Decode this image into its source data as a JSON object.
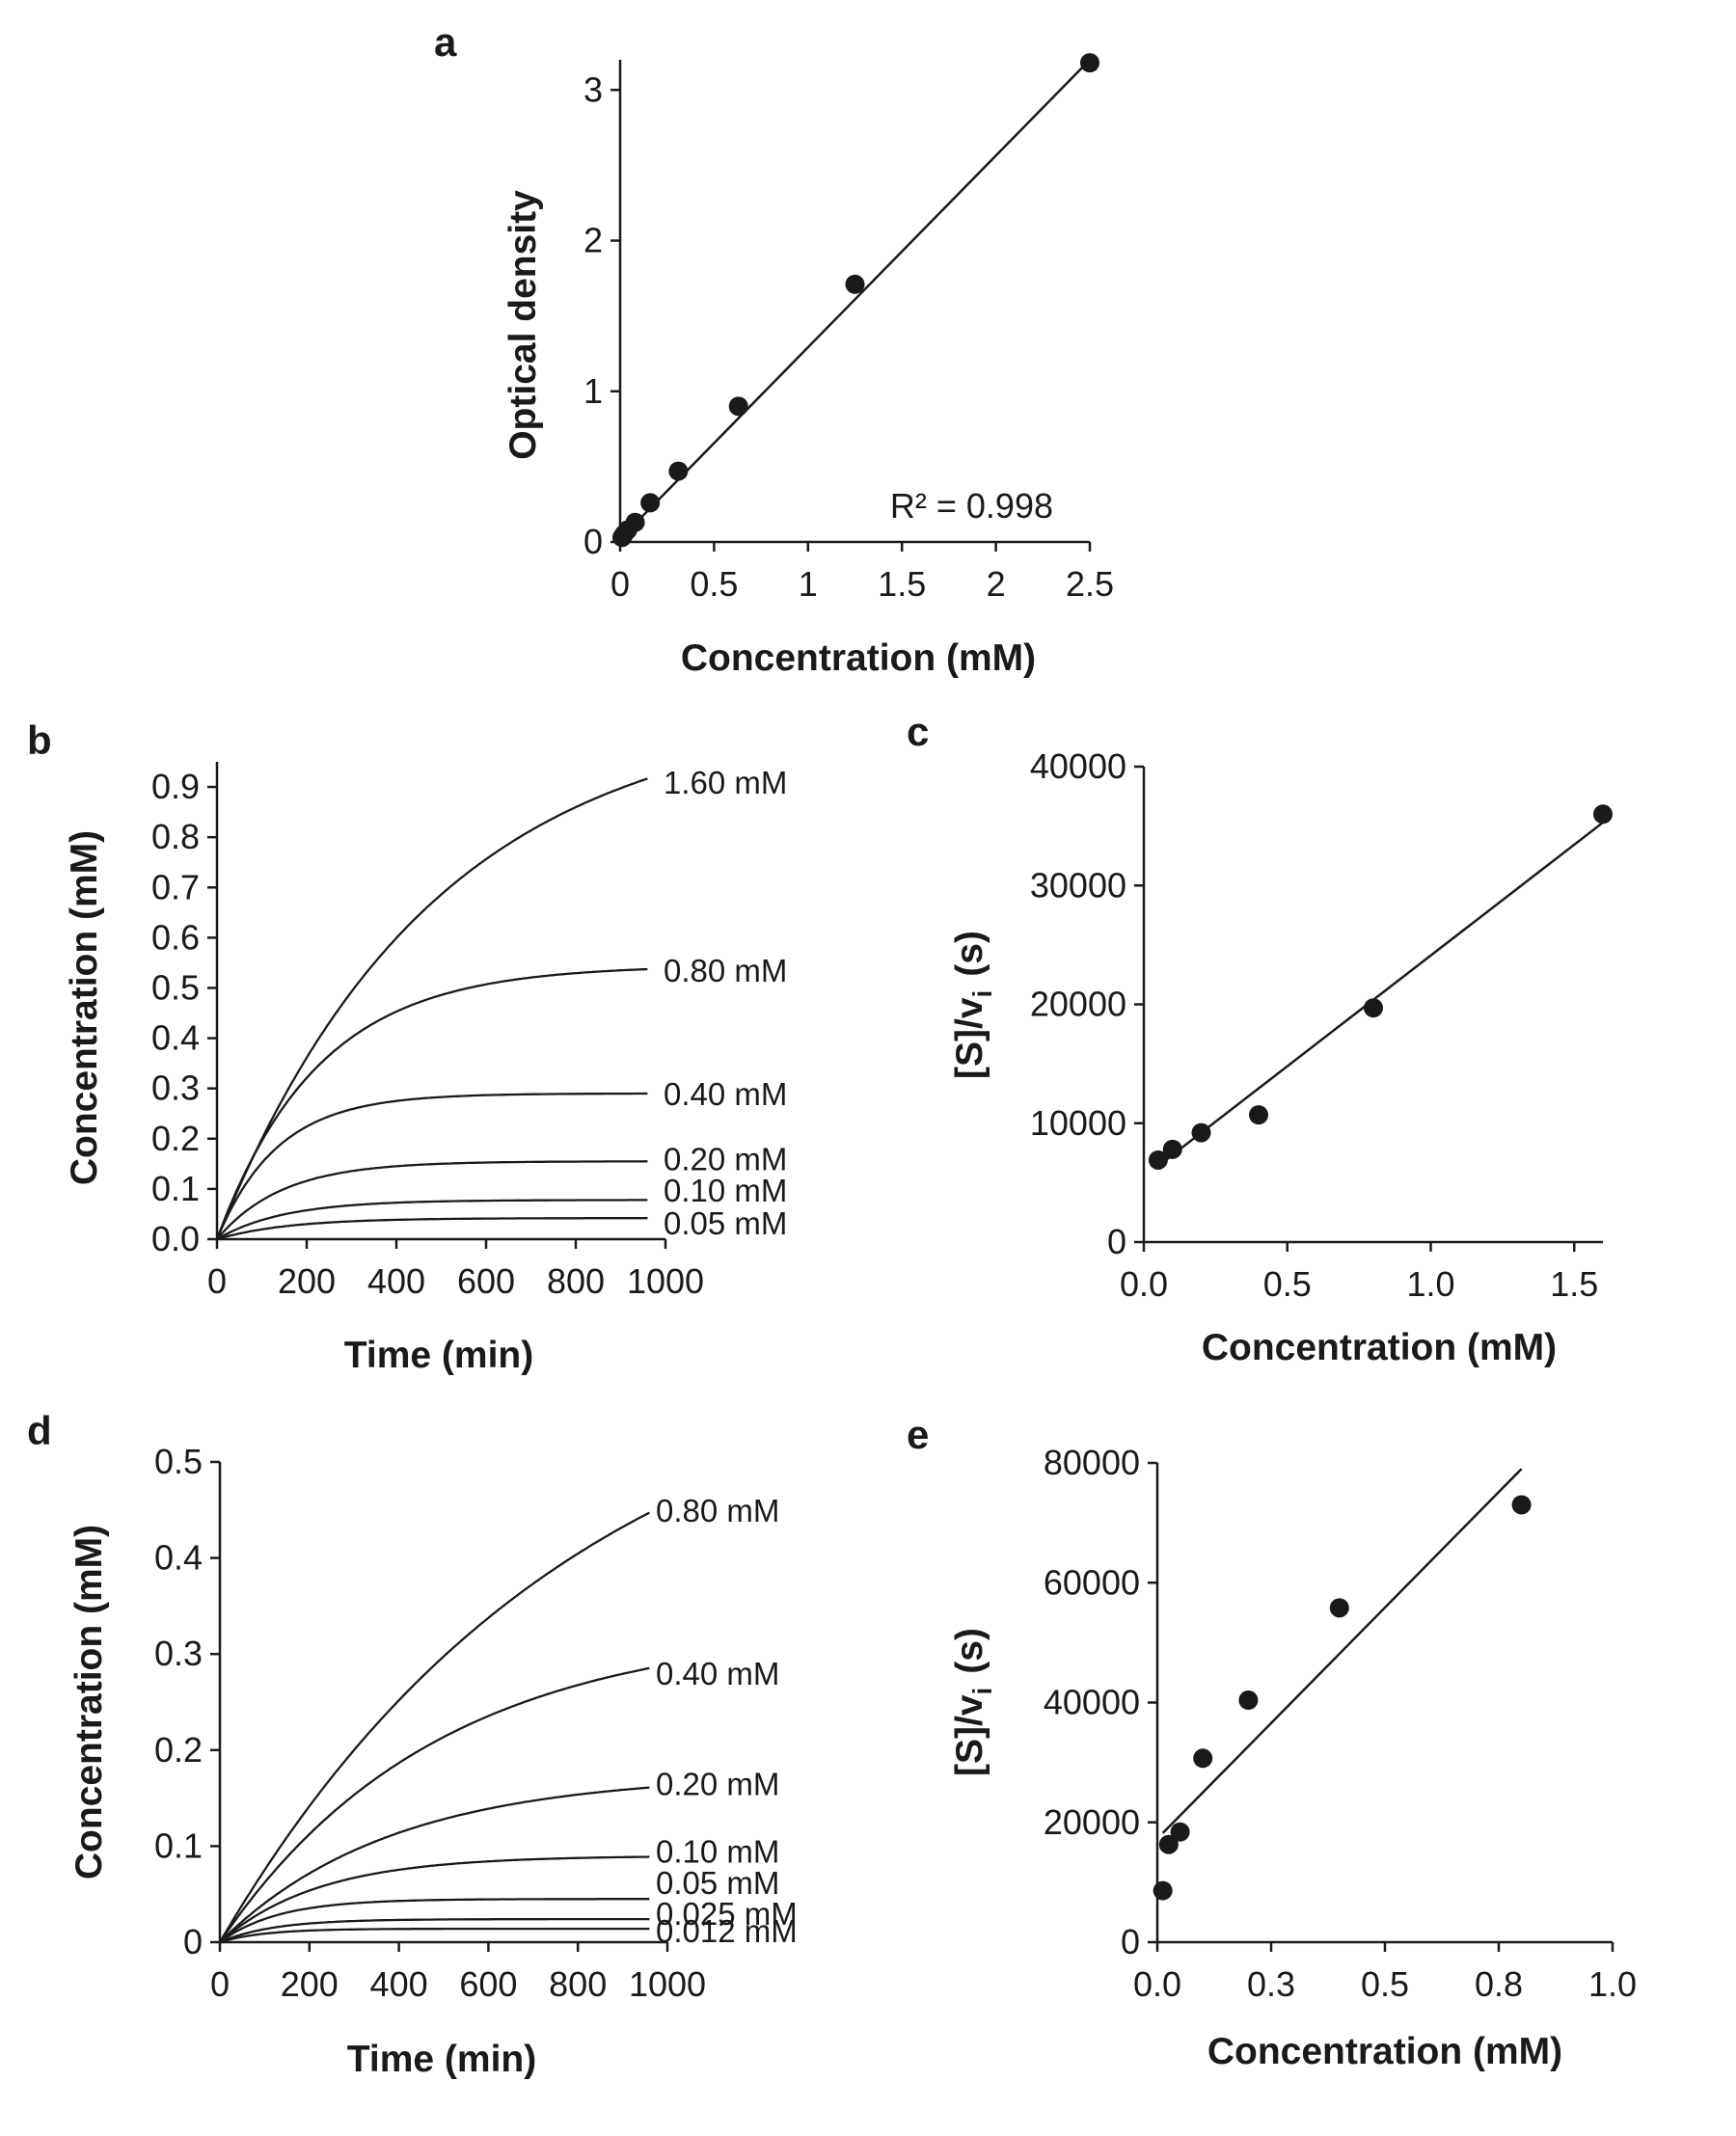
{
  "figure": {
    "background": "#ffffff",
    "ink": "#1a1a1a"
  },
  "chart_data": [
    {
      "id": "a",
      "type": "scatter",
      "panel_label": "a",
      "xlabel": "Concentration (mM)",
      "ylabel": "Optical density",
      "xlim": [
        0,
        2.5
      ],
      "ylim": [
        0,
        3.2
      ],
      "xticks": [
        0,
        0.5,
        1,
        1.5,
        2,
        2.5
      ],
      "xtick_labels": [
        "0",
        "0.5",
        "1",
        "1.5",
        "2",
        "2.5"
      ],
      "yticks": [
        0,
        1,
        2,
        3
      ],
      "ytick_labels": [
        "0",
        "1",
        "2",
        "3"
      ],
      "points": [
        [
          0.01,
          0.03
        ],
        [
          0.02,
          0.05
        ],
        [
          0.04,
          0.08
        ],
        [
          0.08,
          0.13
        ],
        [
          0.16,
          0.26
        ],
        [
          0.31,
          0.47
        ],
        [
          0.63,
          0.9
        ],
        [
          1.25,
          1.71
        ],
        [
          2.5,
          3.18
        ]
      ],
      "fit": [
        [
          0,
          0.02
        ],
        [
          2.5,
          3.2
        ]
      ],
      "annotation": "R² = 0.998"
    },
    {
      "id": "b",
      "type": "line",
      "panel_label": "b",
      "xlabel": "Time (min)",
      "ylabel": "Concentration (mM)",
      "xlim": [
        0,
        1000
      ],
      "ylim": [
        0,
        0.95
      ],
      "xticks": [
        0,
        200,
        400,
        600,
        800,
        1000
      ],
      "xtick_labels": [
        "0",
        "200",
        "400",
        "600",
        "800",
        "1000"
      ],
      "yticks": [
        0,
        0.1,
        0.2,
        0.3,
        0.4,
        0.5,
        0.6,
        0.7,
        0.8,
        0.9
      ],
      "ytick_labels": [
        "0.0",
        "0.1",
        "0.2",
        "0.3",
        "0.4",
        "0.5",
        "0.6",
        "0.7",
        "0.8",
        "0.9"
      ],
      "x_end": 960,
      "series": [
        {
          "name": "1.60 mM",
          "plateau": 1.06,
          "tau": 480
        },
        {
          "name": "0.80 mM",
          "plateau": 0.545,
          "tau": 225
        },
        {
          "name": "0.40 mM",
          "plateau": 0.29,
          "tau": 135
        },
        {
          "name": "0.20 mM",
          "plateau": 0.155,
          "tau": 145
        },
        {
          "name": "0.10 mM",
          "plateau": 0.078,
          "tau": 150
        },
        {
          "name": "0.05 mM",
          "plateau": 0.042,
          "tau": 160
        }
      ],
      "label_y": [
        0.91,
        0.535,
        0.29,
        0.16,
        0.098,
        0.033
      ]
    },
    {
      "id": "c",
      "type": "scatter",
      "panel_label": "c",
      "xlabel": "Concentration (mM)",
      "ylabel_main": "[S]/v",
      "ylabel_sub": "i",
      "ylabel_unit": "(s)",
      "xlim": [
        0,
        1.6
      ],
      "ylim": [
        0,
        40000
      ],
      "xticks": [
        0,
        0.5,
        1.0,
        1.5
      ],
      "xtick_labels": [
        "0.0",
        "0.5",
        "1.0",
        "1.5"
      ],
      "yticks": [
        0,
        10000,
        20000,
        30000,
        40000
      ],
      "ytick_labels": [
        "0",
        "10000",
        "20000",
        "30000",
        "40000"
      ],
      "points": [
        [
          0.05,
          6900
        ],
        [
          0.1,
          7800
        ],
        [
          0.2,
          9200
        ],
        [
          0.4,
          10700
        ],
        [
          0.8,
          19700
        ],
        [
          1.6,
          36000
        ]
      ],
      "fit": [
        [
          0.05,
          6400
        ],
        [
          1.6,
          35300
        ]
      ]
    },
    {
      "id": "d",
      "type": "line",
      "panel_label": "d",
      "xlabel": "Time (min)",
      "ylabel": "Concentration (mM)",
      "xlim": [
        0,
        1000
      ],
      "ylim": [
        0,
        0.5
      ],
      "xticks": [
        0,
        200,
        400,
        600,
        800,
        1000
      ],
      "xtick_labels": [
        "0",
        "200",
        "400",
        "600",
        "800",
        "1000"
      ],
      "yticks": [
        0,
        0.1,
        0.2,
        0.3,
        0.4,
        0.5
      ],
      "ytick_labels": [
        "0",
        "0.1",
        "0.2",
        "0.3",
        "0.4",
        "0.5"
      ],
      "x_end": 960,
      "series": [
        {
          "name": "0.80 mM",
          "plateau": 0.64,
          "tau": 800
        },
        {
          "name": "0.40 mM",
          "plateau": 0.33,
          "tau": 480
        },
        {
          "name": "0.20 mM",
          "plateau": 0.175,
          "tau": 380
        },
        {
          "name": "0.10 mM",
          "plateau": 0.09,
          "tau": 220
        },
        {
          "name": "0.05 mM",
          "plateau": 0.045,
          "tau": 130
        },
        {
          "name": "0.025 mM",
          "plateau": 0.024,
          "tau": 120
        },
        {
          "name": "0.012 mM",
          "plateau": 0.014,
          "tau": 100
        }
      ],
      "label_y": [
        0.45,
        0.28,
        0.165,
        0.095,
        0.062,
        0.03,
        0.012
      ]
    },
    {
      "id": "e",
      "type": "scatter",
      "panel_label": "e",
      "xlabel": "Concentration (mM)",
      "ylabel_main": "[S]/v",
      "ylabel_sub": "i",
      "ylabel_unit": "(s)",
      "xlim": [
        0,
        1.0
      ],
      "ylim": [
        0,
        80000
      ],
      "xticks": [
        0,
        0.25,
        0.5,
        0.75,
        1.0
      ],
      "xtick_labels": [
        "0.0",
        "0.3",
        "0.5",
        "0.8",
        "1.0"
      ],
      "yticks": [
        0,
        20000,
        40000,
        60000,
        80000
      ],
      "ytick_labels": [
        "0",
        "20000",
        "40000",
        "60000",
        "80000"
      ],
      "points": [
        [
          0.012,
          8600
        ],
        [
          0.025,
          16300
        ],
        [
          0.05,
          18400
        ],
        [
          0.1,
          30700
        ],
        [
          0.2,
          40400
        ],
        [
          0.4,
          55800
        ],
        [
          0.8,
          73000
        ]
      ],
      "fit": [
        [
          0.012,
          18200
        ],
        [
          0.8,
          79000
        ]
      ]
    }
  ]
}
